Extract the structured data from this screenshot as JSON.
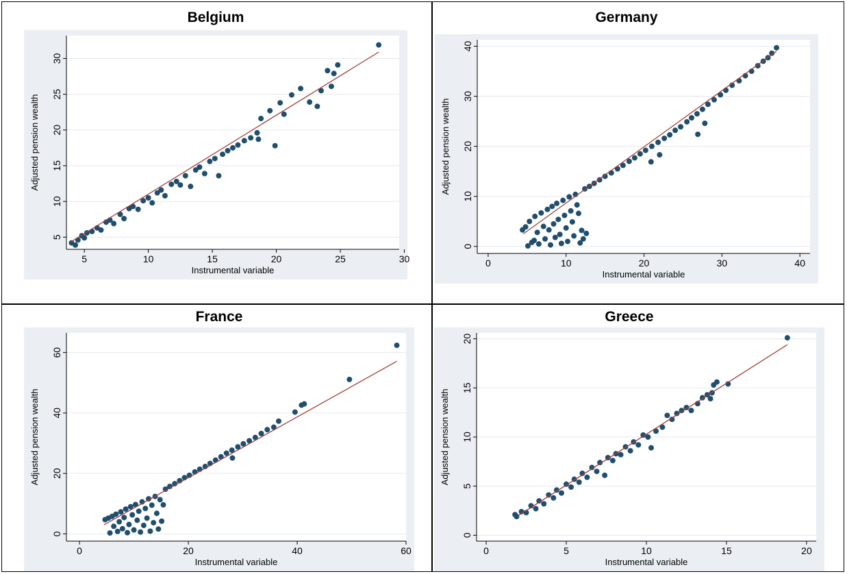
{
  "colors": {
    "plot_background": "#ebeff3",
    "plot_region": "#ffffff",
    "gridline": "#e3e7ec",
    "marker": "#1f4e6e",
    "fit_line": "#a0403a"
  },
  "chart_data": [
    {
      "type": "scatter",
      "title": "Belgium",
      "xlabel": "Instrumental variable",
      "ylabel": "Adjusted pension wealth",
      "xlim": [
        3.6,
        29.6
      ],
      "ylim": [
        3.3,
        33.2
      ],
      "xticks": [
        5,
        10,
        15,
        20,
        25,
        30
      ],
      "yticks": [
        5,
        10,
        15,
        20,
        25,
        30
      ],
      "grid": true,
      "points": [
        [
          4.0,
          4.2
        ],
        [
          4.3,
          3.9
        ],
        [
          4.5,
          4.6
        ],
        [
          4.8,
          5.2
        ],
        [
          5.0,
          4.9
        ],
        [
          5.2,
          5.6
        ],
        [
          5.6,
          5.8
        ],
        [
          6.0,
          6.3
        ],
        [
          6.3,
          6.0
        ],
        [
          6.7,
          7.1
        ],
        [
          7.0,
          7.4
        ],
        [
          7.3,
          6.9
        ],
        [
          7.8,
          8.2
        ],
        [
          8.1,
          7.6
        ],
        [
          8.5,
          9.0
        ],
        [
          8.8,
          9.3
        ],
        [
          9.2,
          8.9
        ],
        [
          9.6,
          10.1
        ],
        [
          10.0,
          10.5
        ],
        [
          10.3,
          9.8
        ],
        [
          10.7,
          11.2
        ],
        [
          11.0,
          11.6
        ],
        [
          11.3,
          10.8
        ],
        [
          11.8,
          12.4
        ],
        [
          12.2,
          12.8
        ],
        [
          12.5,
          12.3
        ],
        [
          12.9,
          13.6
        ],
        [
          13.3,
          12.1
        ],
        [
          13.7,
          14.4
        ],
        [
          14.0,
          14.8
        ],
        [
          14.4,
          13.9
        ],
        [
          14.8,
          15.6
        ],
        [
          15.2,
          16.0
        ],
        [
          15.5,
          13.6
        ],
        [
          15.8,
          16.6
        ],
        [
          16.2,
          17.1
        ],
        [
          16.6,
          17.5
        ],
        [
          17.0,
          17.9
        ],
        [
          17.5,
          18.5
        ],
        [
          18.0,
          18.9
        ],
        [
          18.5,
          19.6
        ],
        [
          18.8,
          21.6
        ],
        [
          18.6,
          18.7
        ],
        [
          19.5,
          22.7
        ],
        [
          19.9,
          17.8
        ],
        [
          20.3,
          23.8
        ],
        [
          20.6,
          22.2
        ],
        [
          21.2,
          24.9
        ],
        [
          21.9,
          25.8
        ],
        [
          22.6,
          23.9
        ],
        [
          23.2,
          23.3
        ],
        [
          23.5,
          25.5
        ],
        [
          24.0,
          28.3
        ],
        [
          24.3,
          26.1
        ],
        [
          24.5,
          27.9
        ],
        [
          24.8,
          29.1
        ],
        [
          28.0,
          31.9
        ]
      ],
      "fit": [
        [
          4.0,
          4.4
        ],
        [
          28.0,
          30.9
        ]
      ]
    },
    {
      "type": "scatter",
      "title": "Germany",
      "xlabel": "Instrumental variable",
      "ylabel": "Adjusted pension wealth",
      "xlim": [
        -1.4,
        41.3
      ],
      "ylim": [
        -1.4,
        41.3
      ],
      "xticks": [
        0,
        10,
        20,
        30,
        40
      ],
      "yticks": [
        0,
        10,
        20,
        30,
        40
      ],
      "grid": true,
      "points": [
        [
          4.4,
          3.3
        ],
        [
          4.8,
          3.9
        ],
        [
          5.1,
          0.1
        ],
        [
          5.3,
          5.0
        ],
        [
          5.6,
          0.8
        ],
        [
          5.9,
          1.2
        ],
        [
          6.0,
          6.0
        ],
        [
          6.3,
          2.8
        ],
        [
          6.5,
          0.5
        ],
        [
          6.8,
          6.7
        ],
        [
          7.1,
          4.0
        ],
        [
          7.3,
          1.5
        ],
        [
          7.6,
          7.4
        ],
        [
          7.8,
          3.3
        ],
        [
          8.0,
          0.3
        ],
        [
          8.2,
          8.0
        ],
        [
          8.4,
          4.5
        ],
        [
          8.6,
          1.8
        ],
        [
          8.8,
          8.6
        ],
        [
          9.0,
          5.4
        ],
        [
          9.2,
          2.4
        ],
        [
          9.4,
          0.6
        ],
        [
          9.6,
          9.2
        ],
        [
          9.8,
          6.2
        ],
        [
          10.0,
          3.7
        ],
        [
          10.2,
          1.0
        ],
        [
          10.4,
          9.9
        ],
        [
          10.6,
          7.1
        ],
        [
          10.8,
          4.9
        ],
        [
          11.0,
          2.1
        ],
        [
          11.2,
          10.4
        ],
        [
          11.4,
          8.3
        ],
        [
          11.6,
          6.6
        ],
        [
          11.8,
          0.7
        ],
        [
          12.0,
          3.2
        ],
        [
          12.2,
          1.5
        ],
        [
          12.4,
          11.5
        ],
        [
          12.6,
          2.6
        ],
        [
          13.0,
          12.0
        ],
        [
          13.6,
          12.6
        ],
        [
          14.3,
          13.3
        ],
        [
          15.0,
          14.0
        ],
        [
          15.8,
          14.7
        ],
        [
          16.6,
          15.5
        ],
        [
          17.3,
          16.2
        ],
        [
          18.1,
          17.0
        ],
        [
          18.8,
          17.7
        ],
        [
          19.5,
          18.5
        ],
        [
          20.2,
          19.2
        ],
        [
          20.9,
          16.9
        ],
        [
          21.0,
          20.0
        ],
        [
          21.8,
          20.8
        ],
        [
          22.0,
          18.3
        ],
        [
          22.6,
          21.6
        ],
        [
          23.3,
          22.3
        ],
        [
          24.0,
          23.2
        ],
        [
          24.7,
          23.9
        ],
        [
          25.5,
          24.9
        ],
        [
          26.1,
          25.7
        ],
        [
          26.9,
          22.4
        ],
        [
          26.8,
          26.5
        ],
        [
          27.5,
          27.4
        ],
        [
          27.8,
          24.6
        ],
        [
          28.2,
          28.4
        ],
        [
          29.0,
          29.3
        ],
        [
          29.8,
          30.3
        ],
        [
          30.5,
          31.2
        ],
        [
          31.3,
          32.2
        ],
        [
          32.2,
          33.1
        ],
        [
          33.0,
          34.1
        ],
        [
          33.8,
          35.0
        ],
        [
          34.6,
          36.1
        ],
        [
          35.3,
          37.0
        ],
        [
          35.9,
          37.7
        ],
        [
          36.4,
          38.6
        ],
        [
          37.0,
          39.7
        ]
      ],
      "fit": [
        [
          4.5,
          2.5
        ],
        [
          37.0,
          39.0
        ]
      ]
    },
    {
      "type": "scatter",
      "title": "France",
      "xlabel": "Instrumental variable",
      "ylabel": "Adjusted pension wealth",
      "xlim": [
        -2.4,
        60.0
      ],
      "ylim": [
        -2.4,
        66.5
      ],
      "xticks": [
        0,
        20,
        40,
        60
      ],
      "yticks": [
        0,
        20,
        40,
        60
      ],
      "grid": true,
      "points": [
        [
          4.7,
          4.7
        ],
        [
          5.3,
          5.2
        ],
        [
          5.6,
          0.3
        ],
        [
          6.0,
          5.8
        ],
        [
          6.3,
          2.5
        ],
        [
          6.7,
          6.5
        ],
        [
          7.0,
          0.8
        ],
        [
          7.3,
          4.0
        ],
        [
          7.6,
          7.3
        ],
        [
          7.9,
          1.7
        ],
        [
          8.2,
          5.4
        ],
        [
          8.5,
          8.2
        ],
        [
          8.8,
          0.4
        ],
        [
          9.1,
          3.1
        ],
        [
          9.4,
          9.0
        ],
        [
          9.7,
          6.3
        ],
        [
          10.0,
          1.3
        ],
        [
          10.3,
          9.7
        ],
        [
          10.6,
          4.5
        ],
        [
          10.9,
          7.5
        ],
        [
          11.2,
          0.6
        ],
        [
          11.5,
          10.6
        ],
        [
          11.8,
          2.8
        ],
        [
          12.1,
          8.4
        ],
        [
          12.4,
          5.2
        ],
        [
          12.7,
          11.6
        ],
        [
          13.0,
          0.9
        ],
        [
          13.3,
          9.5
        ],
        [
          13.6,
          3.7
        ],
        [
          13.9,
          12.4
        ],
        [
          14.2,
          6.8
        ],
        [
          14.5,
          1.6
        ],
        [
          14.8,
          11.3
        ],
        [
          15.1,
          4.2
        ],
        [
          15.4,
          9.6
        ],
        [
          15.8,
          14.8
        ],
        [
          16.6,
          15.7
        ],
        [
          17.5,
          16.6
        ],
        [
          18.4,
          17.6
        ],
        [
          19.3,
          18.6
        ],
        [
          20.2,
          19.4
        ],
        [
          21.2,
          20.5
        ],
        [
          22.1,
          21.4
        ],
        [
          23.1,
          22.3
        ],
        [
          24.0,
          23.3
        ],
        [
          25.0,
          24.4
        ],
        [
          26.0,
          25.5
        ],
        [
          27.0,
          26.7
        ],
        [
          28.1,
          25.1
        ],
        [
          28.0,
          27.7
        ],
        [
          29.1,
          28.8
        ],
        [
          30.1,
          29.8
        ],
        [
          31.2,
          30.8
        ],
        [
          32.3,
          31.9
        ],
        [
          33.4,
          33.2
        ],
        [
          34.5,
          34.5
        ],
        [
          35.7,
          35.3
        ],
        [
          36.6,
          37.3
        ],
        [
          39.6,
          40.3
        ],
        [
          40.8,
          42.6
        ],
        [
          41.3,
          43.0
        ],
        [
          49.6,
          51.1
        ],
        [
          58.3,
          62.4
        ]
      ],
      "fit": [
        [
          4.5,
          3.0
        ],
        [
          58.3,
          57.1
        ]
      ]
    },
    {
      "type": "scatter",
      "title": "Greece",
      "xlabel": "Instrumental variable",
      "ylabel": "Adjusted pension wealth",
      "xlim": [
        -0.6,
        20.6
      ],
      "ylim": [
        -0.6,
        20.6
      ],
      "xticks": [
        0,
        5,
        10,
        15,
        20
      ],
      "yticks": [
        0,
        5,
        10,
        15,
        20
      ],
      "grid": true,
      "points": [
        [
          1.8,
          2.1
        ],
        [
          1.9,
          1.9
        ],
        [
          2.2,
          2.4
        ],
        [
          2.5,
          2.3
        ],
        [
          2.8,
          3.0
        ],
        [
          3.1,
          2.7
        ],
        [
          3.3,
          3.5
        ],
        [
          3.6,
          3.2
        ],
        [
          3.9,
          4.1
        ],
        [
          4.2,
          3.8
        ],
        [
          4.4,
          4.6
        ],
        [
          4.7,
          4.3
        ],
        [
          5.0,
          5.2
        ],
        [
          5.3,
          4.9
        ],
        [
          5.5,
          5.7
        ],
        [
          5.8,
          5.4
        ],
        [
          6.0,
          6.3
        ],
        [
          6.3,
          5.9
        ],
        [
          6.6,
          6.9
        ],
        [
          6.9,
          6.5
        ],
        [
          7.1,
          7.4
        ],
        [
          7.4,
          6.1
        ],
        [
          7.6,
          7.9
        ],
        [
          7.9,
          7.6
        ],
        [
          8.1,
          8.3
        ],
        [
          8.4,
          8.2
        ],
        [
          8.7,
          9.0
        ],
        [
          9.0,
          8.6
        ],
        [
          9.2,
          9.5
        ],
        [
          9.5,
          9.2
        ],
        [
          9.8,
          10.2
        ],
        [
          10.1,
          10.0
        ],
        [
          10.3,
          8.9
        ],
        [
          10.6,
          10.6
        ],
        [
          11.0,
          11.0
        ],
        [
          11.3,
          12.2
        ],
        [
          11.6,
          11.8
        ],
        [
          11.9,
          12.4
        ],
        [
          12.2,
          12.7
        ],
        [
          12.5,
          13.0
        ],
        [
          12.8,
          12.7
        ],
        [
          13.2,
          13.4
        ],
        [
          13.5,
          14.0
        ],
        [
          13.8,
          14.3
        ],
        [
          14.1,
          14.5
        ],
        [
          14.2,
          15.3
        ],
        [
          14.4,
          15.6
        ],
        [
          14.0,
          13.9
        ],
        [
          15.1,
          15.4
        ],
        [
          18.8,
          20.1
        ]
      ],
      "fit": [
        [
          2.0,
          2.0
        ],
        [
          18.8,
          19.4
        ]
      ]
    }
  ]
}
